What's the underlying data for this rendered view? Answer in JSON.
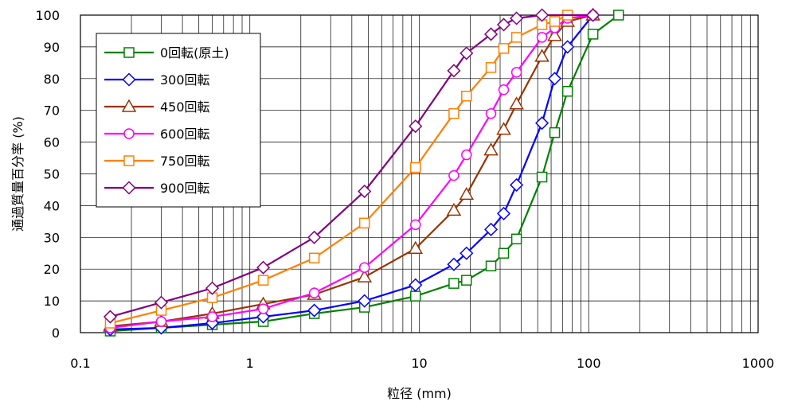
{
  "chart_data": {
    "type": "line",
    "xscale": "log",
    "xlim": [
      0.1,
      1000
    ],
    "ylim": [
      0,
      100
    ],
    "grid": true,
    "legend_position": "top-left",
    "xlabel": "粒径 (mm)",
    "ylabel": "通過質量百分率 (%)",
    "x_ticks": [
      "0.1",
      "1",
      "10",
      "100",
      "1000"
    ],
    "y_ticks": [
      "0",
      "10",
      "20",
      "30",
      "40",
      "50",
      "60",
      "70",
      "80",
      "90",
      "100"
    ],
    "series": [
      {
        "name": "0回転(原土)",
        "color": "#008000",
        "marker": "square",
        "x": [
          0.15,
          0.3,
          0.6,
          1.2,
          2.4,
          4.75,
          9.5,
          16,
          19,
          26.5,
          31.5,
          37.5,
          53,
          63,
          75,
          106,
          150
        ],
        "y": [
          0.5,
          1.5,
          2.5,
          3.5,
          6,
          8,
          11.5,
          15.5,
          16.5,
          21,
          25,
          29.5,
          49,
          63,
          76,
          94,
          100
        ]
      },
      {
        "name": "300回転",
        "color": "#0000ff",
        "marker": "diamond",
        "x": [
          0.15,
          0.3,
          0.6,
          1.2,
          2.4,
          4.75,
          9.5,
          16,
          19,
          26.5,
          31.5,
          37.5,
          53,
          63,
          75,
          106
        ],
        "y": [
          1,
          1.5,
          3,
          5,
          7,
          10,
          15,
          21.5,
          25,
          32.5,
          37.5,
          46.5,
          66,
          80,
          90,
          100
        ]
      },
      {
        "name": "450回転",
        "color": "#993300",
        "marker": "triangle",
        "x": [
          0.15,
          0.3,
          0.6,
          1.2,
          2.4,
          4.75,
          9.5,
          16,
          19,
          26.5,
          31.5,
          37.5,
          53,
          63,
          75,
          106
        ],
        "y": [
          2,
          3.5,
          6,
          9,
          12,
          17.5,
          26.5,
          38.5,
          43.5,
          57.5,
          64,
          72,
          87,
          93.5,
          98,
          100
        ]
      },
      {
        "name": "600回転",
        "color": "#ff00ff",
        "marker": "circle",
        "x": [
          0.15,
          0.3,
          0.6,
          1.2,
          2.4,
          4.75,
          9.5,
          16,
          19,
          26.5,
          31.5,
          37.5,
          53,
          63,
          75,
          106
        ],
        "y": [
          1.5,
          3.5,
          5,
          7.5,
          12.5,
          20.5,
          34,
          49.5,
          56,
          69,
          76.5,
          82,
          93,
          96,
          99,
          100
        ]
      },
      {
        "name": "750回転",
        "color": "#ff8000",
        "marker": "square",
        "x": [
          0.15,
          0.3,
          0.6,
          1.2,
          2.4,
          4.75,
          9.5,
          16,
          19,
          26.5,
          31.5,
          37.5,
          53,
          63,
          75
        ],
        "y": [
          3,
          7,
          11,
          16.5,
          23.5,
          34.5,
          52,
          69,
          74.5,
          83.5,
          89.5,
          93,
          97,
          98,
          100
        ]
      },
      {
        "name": "900回転",
        "color": "#800080",
        "marker": "diamond",
        "x": [
          0.15,
          0.3,
          0.6,
          1.2,
          2.4,
          4.75,
          9.5,
          16,
          19,
          26.5,
          31.5,
          37.5,
          53,
          106
        ],
        "y": [
          5,
          9.5,
          14,
          20.5,
          30,
          44.5,
          65,
          82.5,
          88,
          94,
          97,
          99,
          100,
          100
        ]
      }
    ]
  }
}
